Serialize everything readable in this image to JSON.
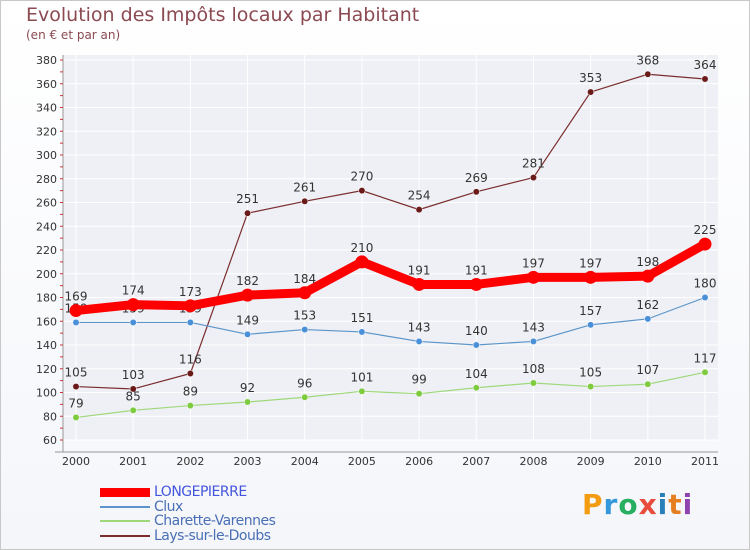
{
  "header": {
    "title": "Evolution des Impôts locaux par Habitant",
    "subtitle": "(en € et par an)"
  },
  "logo": {
    "text": "Proxiti",
    "colors": [
      "#f39c12",
      "#3498db",
      "#27ae60",
      "#e74c3c",
      "#2980b9",
      "#e67e22",
      "#8e44ad"
    ]
  },
  "chart_data": {
    "type": "line",
    "title": "Evolution des Impôts locaux par Habitant",
    "subtitle": "(en € et par an)",
    "xlabel": "",
    "ylabel": "",
    "ylim": [
      60,
      380
    ],
    "ytick_step": 20,
    "grid": true,
    "legend_position": "bottom-left",
    "x": [
      "2000",
      "2001",
      "2002",
      "2003",
      "2004",
      "2005",
      "2006",
      "2007",
      "2008",
      "2009",
      "2010",
      "2011"
    ],
    "series": [
      {
        "name": "Lays-sur-le-Doubs",
        "color": "#7b2d2d",
        "dot": "#6b1a1a",
        "style": "thin",
        "values": [
          105,
          103,
          116,
          251,
          261,
          270,
          254,
          269,
          281,
          353,
          368,
          364
        ]
      },
      {
        "name": "Charette-Varennes",
        "color": "#9fd87a",
        "dot": "#7ecb3f",
        "style": "thin",
        "values": [
          79,
          85,
          89,
          92,
          96,
          101,
          99,
          104,
          108,
          105,
          107,
          117
        ]
      },
      {
        "name": "Clux",
        "color": "#5b95c9",
        "dot": "#4a90d9",
        "style": "thin",
        "values": [
          159,
          159,
          159,
          149,
          153,
          151,
          143,
          140,
          143,
          157,
          162,
          180
        ]
      },
      {
        "name": "LONGEPIERRE",
        "color": "#ff0000",
        "dot": "#ff0000",
        "style": "thick",
        "values": [
          169,
          174,
          173,
          182,
          184,
          210,
          191,
          191,
          197,
          197,
          198,
          225
        ]
      }
    ],
    "legend_order": [
      "LONGEPIERRE",
      "Clux",
      "Charette-Varennes",
      "Lays-sur-le-Doubs"
    ]
  }
}
